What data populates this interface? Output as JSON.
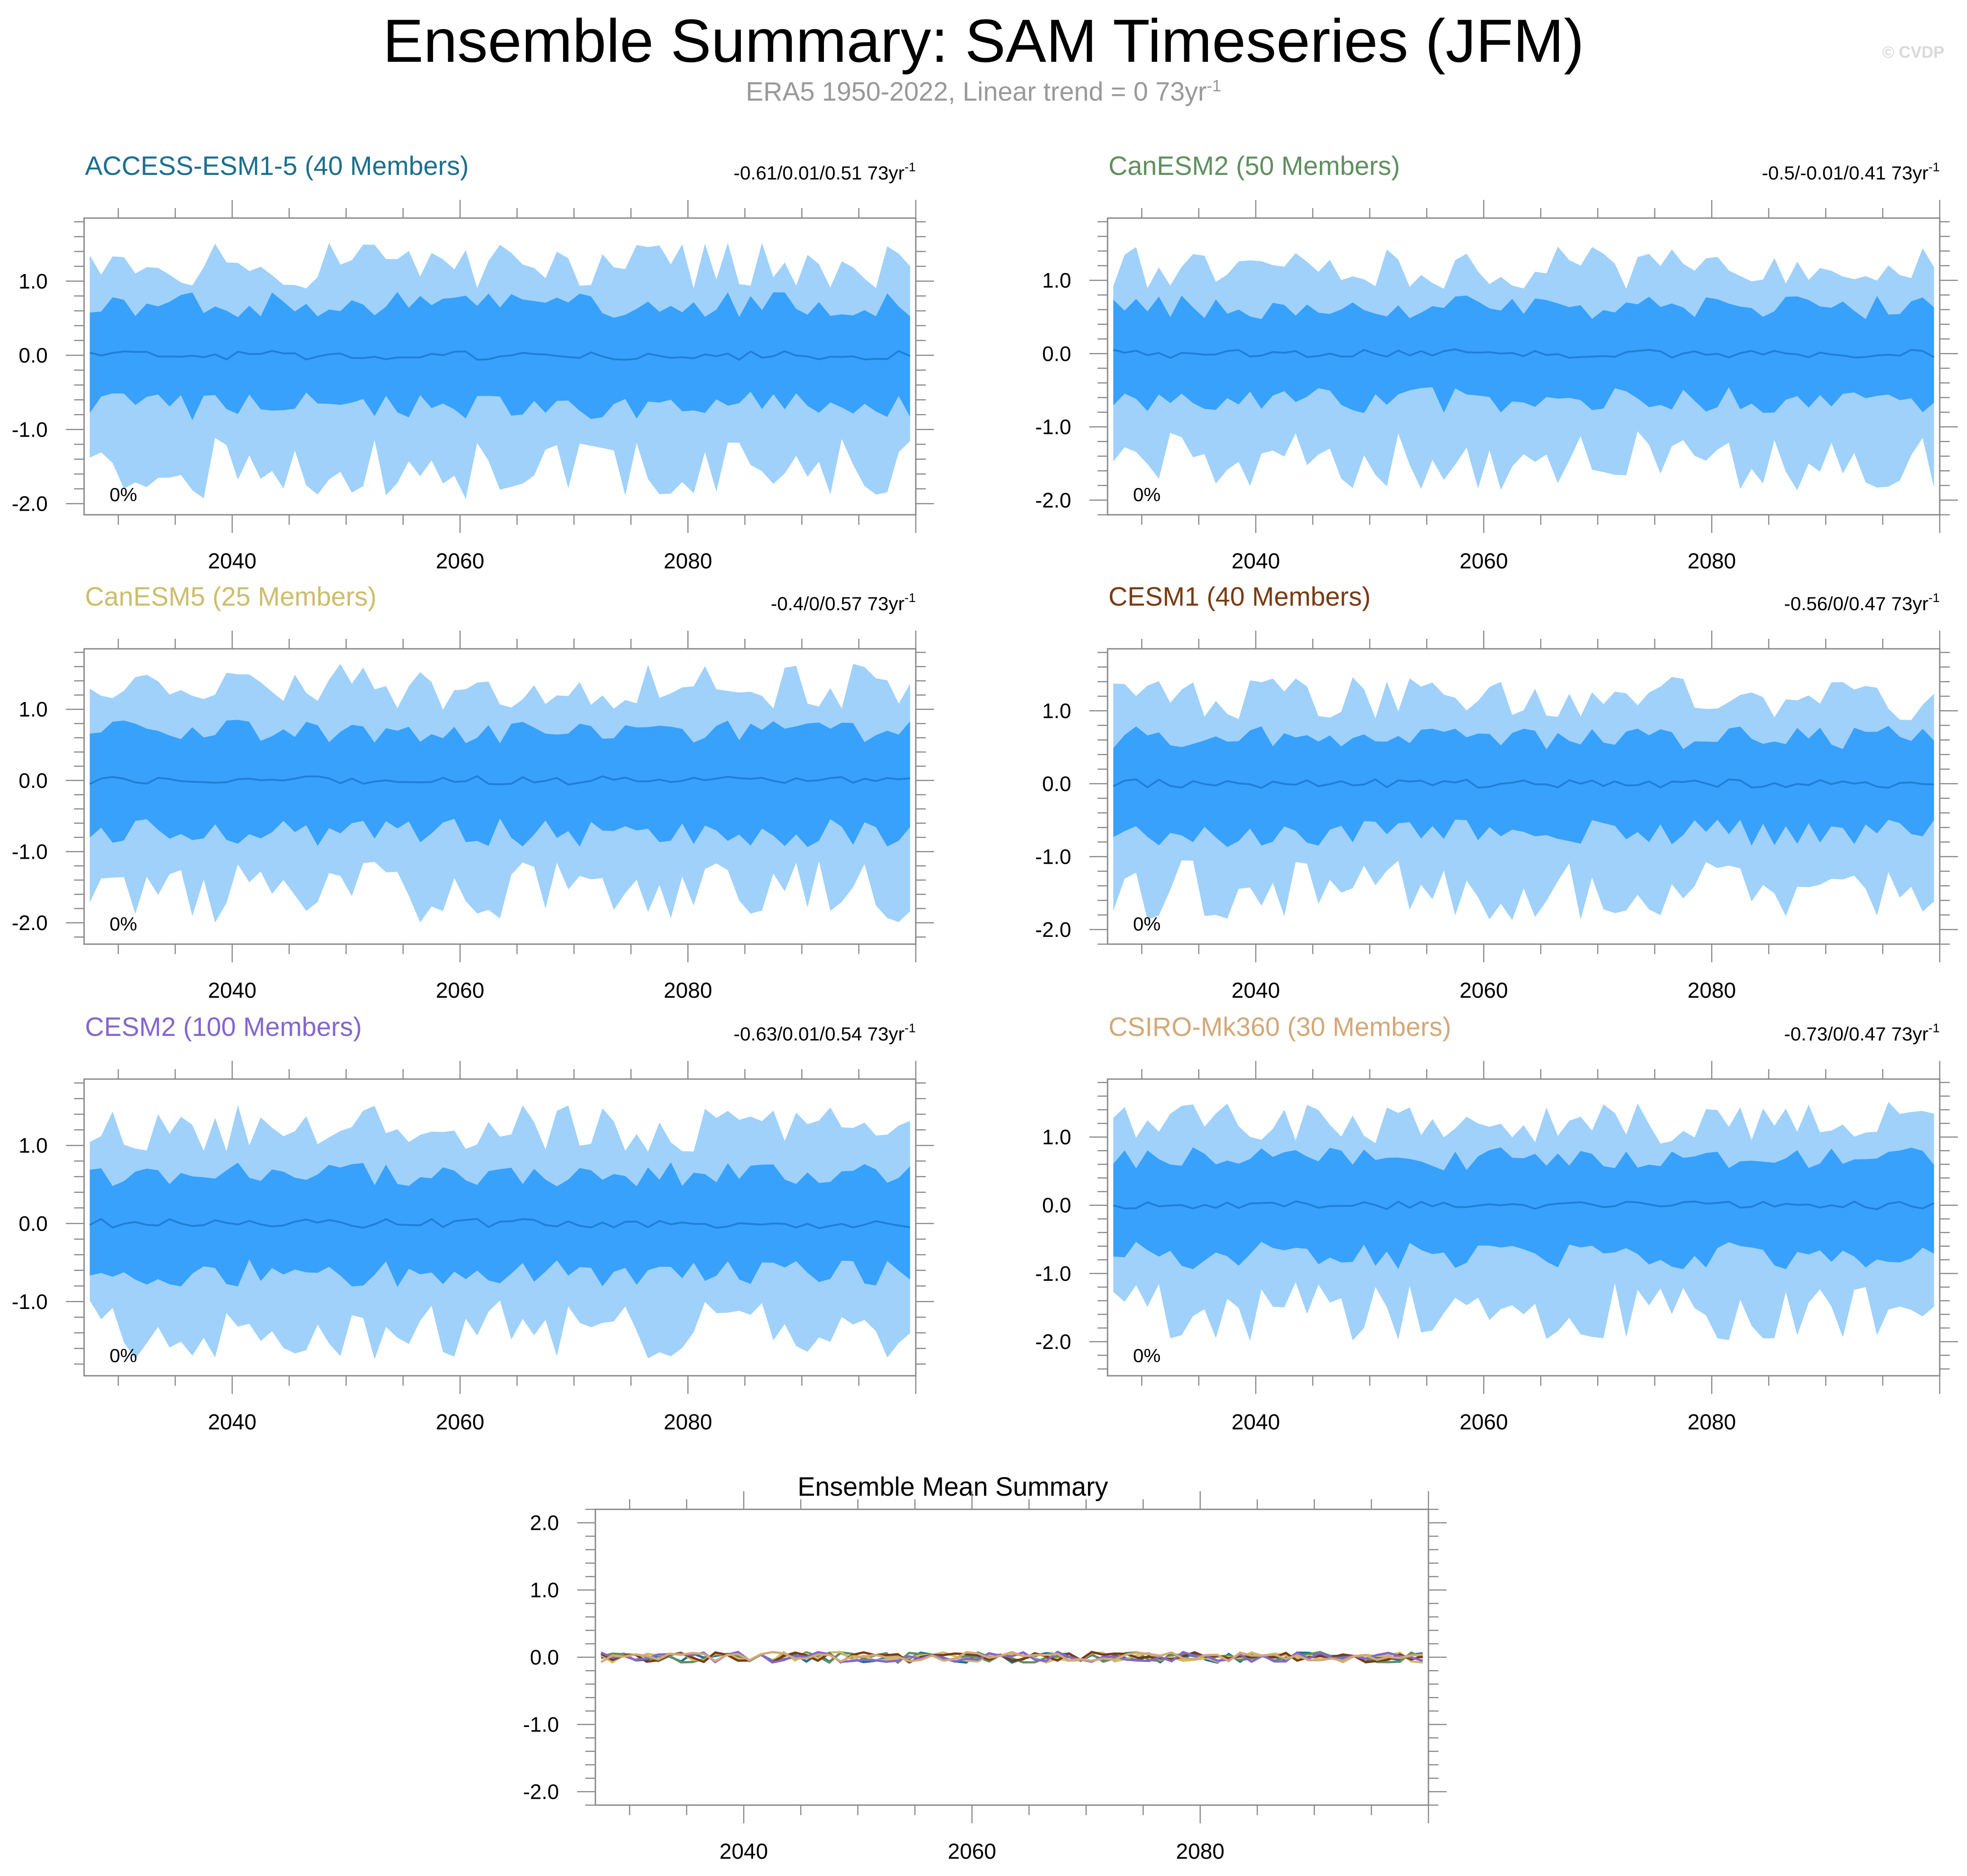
{
  "header": {
    "title": "Ensemble Summary: SAM Timeseries (JFM)",
    "subtitle_text": "ERA5 1950-2022, Linear trend = 0 73yr",
    "subtitle_exp": "-1",
    "watermark": "© CVDP"
  },
  "colors": {
    "outer_band": "#9fd1fb",
    "inner_band": "#38a1fb",
    "mean_line": "#1e7fd8",
    "axis": "#888888"
  },
  "chart_data": [
    {
      "type": "area",
      "title": "ACCESS-ESM1-5 (40 Members)",
      "title_color": "#1b6f8f",
      "trend_label": "-0.61/0.01/0.51 73yr",
      "trend_exp": "-1",
      "percent_label": "0%",
      "xlim": [
        2027,
        2100
      ],
      "xticks": [
        2040,
        2060,
        2080
      ],
      "ylim": [
        -2.15,
        1.85
      ],
      "yticks": [
        -2.0,
        -1.0,
        0.0,
        1.0
      ],
      "ytick_labels": [
        "-2.0",
        "-1.0",
        "0.0",
        "1.0"
      ],
      "envelope_amplitude": {
        "outer_top": 1.25,
        "inner_top": 0.7,
        "inner_bottom": -0.7,
        "outer_bottom": -1.55
      }
    },
    {
      "type": "area",
      "title": "CanESM2 (50 Members)",
      "title_color": "#5f8f5f",
      "trend_label": "-0.5/-0.01/0.41 73yr",
      "trend_exp": "-1",
      "percent_label": "0%",
      "xlim": [
        2027,
        2100
      ],
      "xticks": [
        2040,
        2060,
        2080
      ],
      "ylim": [
        -2.2,
        1.85
      ],
      "yticks": [
        -2.0,
        -1.0,
        0.0,
        1.0
      ],
      "ytick_labels": [
        "-2.0",
        "-1.0",
        "0.0",
        "1.0"
      ],
      "envelope_amplitude": {
        "outer_top": 1.2,
        "inner_top": 0.65,
        "inner_bottom": -0.65,
        "outer_bottom": -1.5
      }
    },
    {
      "type": "area",
      "title": "CanESM5 (25 Members)",
      "title_color": "#cdbd6c",
      "trend_label": "-0.4/0/0.57 73yr",
      "trend_exp": "-1",
      "percent_label": "0%",
      "xlim": [
        2027,
        2100
      ],
      "xticks": [
        2040,
        2060,
        2080
      ],
      "ylim": [
        -2.3,
        1.85
      ],
      "yticks": [
        -2.0,
        -1.0,
        0.0,
        1.0
      ],
      "ytick_labels": [
        "-2.0",
        "-1.0",
        "0.0",
        "1.0"
      ],
      "envelope_amplitude": {
        "outer_top": 1.35,
        "inner_top": 0.7,
        "inner_bottom": -0.75,
        "outer_bottom": -1.6
      }
    },
    {
      "type": "area",
      "title": "CESM1 (40 Members)",
      "title_color": "#7a3a12",
      "trend_label": "-0.56/0/0.47 73yr",
      "trend_exp": "-1",
      "percent_label": "0%",
      "xlim": [
        2027,
        2100
      ],
      "xticks": [
        2040,
        2060,
        2080
      ],
      "ylim": [
        -2.2,
        1.85
      ],
      "yticks": [
        -2.0,
        -1.0,
        0.0,
        1.0
      ],
      "ytick_labels": [
        "-2.0",
        "-1.0",
        "0.0",
        "1.0"
      ],
      "envelope_amplitude": {
        "outer_top": 1.2,
        "inner_top": 0.65,
        "inner_bottom": -0.7,
        "outer_bottom": -1.5
      }
    },
    {
      "type": "area",
      "title": "CESM2 (100 Members)",
      "title_color": "#8466d0",
      "trend_label": "-0.63/0.01/0.54 73yr",
      "trend_exp": "-1",
      "percent_label": "0%",
      "xlim": [
        2027,
        2100
      ],
      "xticks": [
        2040,
        2060,
        2080
      ],
      "ylim": [
        -1.95,
        1.85
      ],
      "yticks": [
        -1.0,
        0.0,
        1.0
      ],
      "ytick_labels": [
        "-1.0",
        "0.0",
        "1.0"
      ],
      "envelope_amplitude": {
        "outer_top": 1.25,
        "inner_top": 0.65,
        "inner_bottom": -0.65,
        "outer_bottom": -1.4
      }
    },
    {
      "type": "area",
      "title": "CSIRO-Mk360 (30 Members)",
      "title_color": "#d4a878",
      "trend_label": "-0.73/0/0.47 73yr",
      "trend_exp": "-1",
      "percent_label": "0%",
      "xlim": [
        2027,
        2100
      ],
      "xticks": [
        2040,
        2060,
        2080
      ],
      "ylim": [
        -2.5,
        1.85
      ],
      "yticks": [
        -2.0,
        -1.0,
        0.0,
        1.0
      ],
      "ytick_labels": [
        "-2.0",
        "-1.0",
        "0.0",
        "1.0"
      ],
      "envelope_amplitude": {
        "outer_top": 1.25,
        "inner_top": 0.7,
        "inner_bottom": -0.75,
        "outer_bottom": -1.6
      }
    },
    {
      "type": "line",
      "title": "Ensemble Mean Summary",
      "title_color": "#000000",
      "xlim": [
        2027,
        2100
      ],
      "xticks": [
        2040,
        2060,
        2080
      ],
      "ylim": [
        -2.2,
        2.2
      ],
      "yticks": [
        -2.0,
        -1.0,
        0.0,
        1.0,
        2.0
      ],
      "ytick_labels": [
        "-2.0",
        "-1.0",
        "0.0",
        "1.0",
        "2.0"
      ],
      "series": [
        {
          "color": "#1b6f8f"
        },
        {
          "color": "#5f8f5f"
        },
        {
          "color": "#cdbd6c"
        },
        {
          "color": "#7a3a12"
        },
        {
          "color": "#8466d0"
        },
        {
          "color": "#d4a878"
        }
      ]
    }
  ]
}
